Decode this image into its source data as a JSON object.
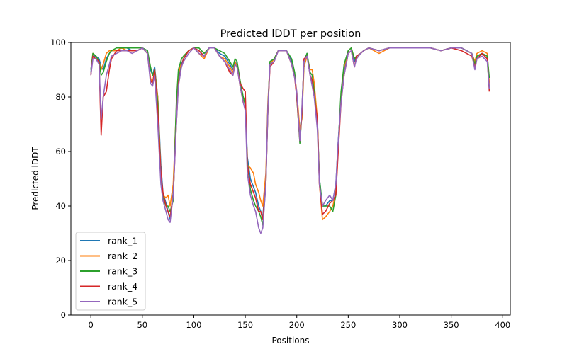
{
  "chart_data": {
    "type": "line",
    "title": "Predicted lDDT per position",
    "xlabel": "Positions",
    "ylabel": "Predicted lDDT",
    "xlim": [
      -19.4,
      407.4
    ],
    "ylim": [
      0,
      100
    ],
    "xticks": [
      0,
      50,
      100,
      150,
      200,
      250,
      300,
      350,
      400
    ],
    "yticks": [
      0,
      20,
      40,
      60,
      80,
      100
    ],
    "legend_position": "bottom-left",
    "grid": false,
    "x": [
      0,
      2,
      5,
      8,
      10,
      12,
      15,
      18,
      20,
      25,
      30,
      35,
      40,
      45,
      50,
      55,
      58,
      60,
      62,
      65,
      68,
      70,
      73,
      75,
      77,
      80,
      83,
      85,
      88,
      90,
      95,
      100,
      105,
      110,
      115,
      120,
      125,
      130,
      135,
      138,
      140,
      142,
      145,
      148,
      150,
      152,
      155,
      158,
      160,
      163,
      165,
      167,
      170,
      172,
      174,
      178,
      182,
      190,
      195,
      198,
      200,
      203,
      205,
      207,
      210,
      213,
      215,
      217,
      220,
      222,
      225,
      228,
      232,
      235,
      238,
      240,
      243,
      246,
      250,
      253,
      256,
      258,
      262,
      265,
      270,
      280,
      290,
      300,
      310,
      320,
      330,
      340,
      350,
      360,
      365,
      370,
      373,
      375,
      380,
      385,
      387
    ],
    "series": [
      {
        "name": "rank_1",
        "color": "#1f77b4",
        "values": [
          89,
          95,
          95,
          94,
          91,
          90,
          94,
          96,
          97,
          97,
          98,
          98,
          97,
          97,
          98,
          97,
          90,
          88,
          91,
          80,
          55,
          45,
          41,
          38,
          35,
          45,
          72,
          86,
          92,
          94,
          97,
          98,
          97,
          95,
          98,
          98,
          96,
          95,
          92,
          90,
          93,
          92,
          85,
          80,
          78,
          58,
          50,
          47,
          45,
          40,
          38,
          36,
          50,
          76,
          92,
          93,
          97,
          97,
          93,
          88,
          80,
          66,
          75,
          93,
          96,
          88,
          86,
          82,
          72,
          50,
          40,
          40,
          42,
          42,
          48,
          62,
          80,
          90,
          97,
          98,
          93,
          95,
          96,
          97,
          98,
          97,
          98,
          98,
          98,
          98,
          98,
          97,
          98,
          98,
          97,
          96,
          92,
          95,
          96,
          95,
          83
        ]
      },
      {
        "name": "rank_2",
        "color": "#ff7f0e",
        "values": [
          88,
          96,
          95,
          93,
          90,
          92,
          96,
          97,
          97,
          97,
          98,
          97,
          97,
          97,
          98,
          96,
          87,
          85,
          90,
          80,
          52,
          44,
          43,
          44,
          40,
          48,
          76,
          88,
          94,
          95,
          97,
          98,
          96,
          94,
          98,
          98,
          95,
          94,
          91,
          89,
          93,
          91,
          84,
          78,
          80,
          55,
          54,
          52,
          48,
          45,
          42,
          40,
          52,
          78,
          92,
          94,
          97,
          97,
          92,
          88,
          82,
          68,
          72,
          91,
          95,
          90,
          90,
          85,
          72,
          48,
          35,
          36,
          38,
          40,
          45,
          60,
          80,
          91,
          97,
          98,
          94,
          95,
          96,
          97,
          98,
          96,
          98,
          98,
          98,
          98,
          98,
          97,
          98,
          98,
          97,
          96,
          93,
          96,
          97,
          96,
          85
        ]
      },
      {
        "name": "rank_3",
        "color": "#2ca02c",
        "values": [
          90,
          96,
          95,
          93,
          88,
          89,
          93,
          96,
          97,
          98,
          98,
          98,
          98,
          98,
          98,
          97,
          91,
          88,
          90,
          78,
          50,
          43,
          40,
          40,
          38,
          42,
          78,
          90,
          94,
          95,
          97,
          98,
          98,
          96,
          98,
          98,
          97,
          96,
          93,
          91,
          94,
          93,
          86,
          80,
          77,
          56,
          46,
          42,
          40,
          38,
          36,
          33,
          48,
          76,
          93,
          94,
          97,
          97,
          94,
          89,
          80,
          63,
          74,
          93,
          96,
          89,
          88,
          82,
          70,
          50,
          40,
          40,
          40,
          38,
          44,
          60,
          82,
          92,
          97,
          98,
          94,
          95,
          96,
          97,
          98,
          97,
          98,
          98,
          98,
          98,
          98,
          97,
          98,
          98,
          97,
          96,
          92,
          95,
          96,
          95,
          87
        ]
      },
      {
        "name": "rank_4",
        "color": "#d62728",
        "values": [
          88,
          95,
          94,
          93,
          66,
          80,
          82,
          90,
          94,
          97,
          97,
          97,
          97,
          97,
          98,
          96,
          86,
          85,
          90,
          75,
          52,
          45,
          40,
          38,
          36,
          44,
          70,
          85,
          91,
          94,
          97,
          98,
          97,
          95,
          98,
          98,
          95,
          93,
          89,
          88,
          92,
          91,
          85,
          83,
          82,
          55,
          48,
          45,
          43,
          38,
          38,
          35,
          48,
          75,
          91,
          93,
          97,
          97,
          92,
          87,
          80,
          64,
          74,
          94,
          95,
          88,
          86,
          80,
          72,
          48,
          37,
          38,
          41,
          42,
          44,
          58,
          78,
          88,
          96,
          97,
          91,
          95,
          96,
          97,
          98,
          97,
          98,
          98,
          98,
          98,
          98,
          97,
          98,
          97,
          96,
          95,
          91,
          94,
          96,
          94,
          82
        ]
      },
      {
        "name": "rank_5",
        "color": "#9467bd",
        "values": [
          88,
          94,
          94,
          92,
          72,
          80,
          88,
          92,
          95,
          96,
          97,
          97,
          96,
          97,
          98,
          96,
          85,
          84,
          88,
          70,
          48,
          42,
          38,
          35,
          34,
          44,
          70,
          84,
          91,
          93,
          96,
          98,
          96,
          95,
          98,
          98,
          95,
          93,
          90,
          88,
          92,
          91,
          84,
          78,
          75,
          52,
          44,
          40,
          38,
          32,
          30,
          32,
          48,
          76,
          92,
          93,
          97,
          97,
          92,
          87,
          82,
          64,
          76,
          93,
          95,
          88,
          84,
          80,
          68,
          48,
          40,
          42,
          44,
          42,
          48,
          62,
          78,
          88,
          96,
          97,
          91,
          94,
          96,
          97,
          98,
          97,
          98,
          98,
          98,
          98,
          98,
          97,
          98,
          98,
          97,
          96,
          90,
          94,
          95,
          93,
          83
        ]
      }
    ]
  }
}
